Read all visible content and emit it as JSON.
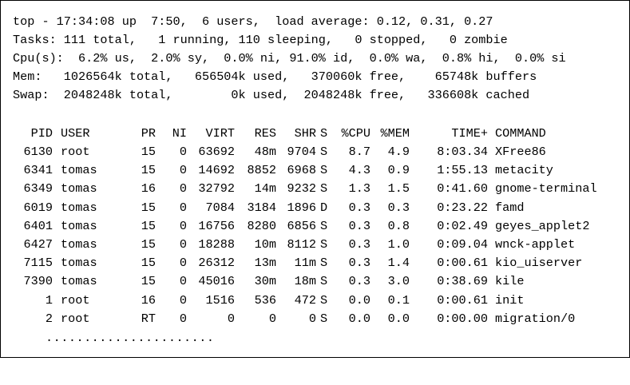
{
  "summary": [
    "top - 17:34:08 up  7:50,  6 users,  load average: 0.12, 0.31, 0.27",
    "Tasks: 111 total,   1 running, 110 sleeping,   0 stopped,   0 zombie",
    "Cpu(s):  6.2% us,  2.0% sy,  0.0% ni, 91.0% id,  0.0% wa,  0.8% hi,  0.0% si",
    "Mem:   1026564k total,   656504k used,   370060k free,    65748k buffers",
    "Swap:  2048248k total,        0k used,  2048248k free,   336608k cached"
  ],
  "columns": [
    "PID",
    "USER",
    "PR",
    "NI",
    "VIRT",
    "RES",
    "SHR",
    "S",
    "%CPU",
    "%MEM",
    "TIME+",
    "COMMAND"
  ],
  "processes": [
    [
      "6130",
      "root",
      "15",
      "0",
      "63692",
      "48m",
      "9704",
      "S",
      "8.7",
      "4.9",
      "8:03.34",
      "XFree86"
    ],
    [
      "6341",
      "tomas",
      "15",
      "0",
      "14692",
      "8852",
      "6968",
      "S",
      "4.3",
      "0.9",
      "1:55.13",
      "metacity"
    ],
    [
      "6349",
      "tomas",
      "16",
      "0",
      "32792",
      "14m",
      "9232",
      "S",
      "1.3",
      "1.5",
      "0:41.60",
      "gnome-terminal"
    ],
    [
      "6019",
      "tomas",
      "15",
      "0",
      "7084",
      "3184",
      "1896",
      "D",
      "0.3",
      "0.3",
      "0:23.22",
      "famd"
    ],
    [
      "6401",
      "tomas",
      "15",
      "0",
      "16756",
      "8280",
      "6856",
      "S",
      "0.3",
      "0.8",
      "0:02.49",
      "geyes_applet2"
    ],
    [
      "6427",
      "tomas",
      "15",
      "0",
      "18288",
      "10m",
      "8112",
      "S",
      "0.3",
      "1.0",
      "0:09.04",
      "wnck-applet"
    ],
    [
      "7115",
      "tomas",
      "15",
      "0",
      "26312",
      "13m",
      "11m",
      "S",
      "0.3",
      "1.4",
      "0:00.61",
      "kio_uiserver"
    ],
    [
      "7390",
      "tomas",
      "15",
      "0",
      "45016",
      "30m",
      "18m",
      "S",
      "0.3",
      "3.0",
      "0:38.69",
      "kile"
    ],
    [
      "1",
      "root",
      "16",
      "0",
      "1516",
      "536",
      "472",
      "S",
      "0.0",
      "0.1",
      "0:00.61",
      "init"
    ],
    [
      "2",
      "root",
      "RT",
      "0",
      "0",
      "0",
      "0",
      "S",
      "0.0",
      "0.0",
      "0:00.00",
      "migration/0"
    ]
  ],
  "continuation": "......................"
}
